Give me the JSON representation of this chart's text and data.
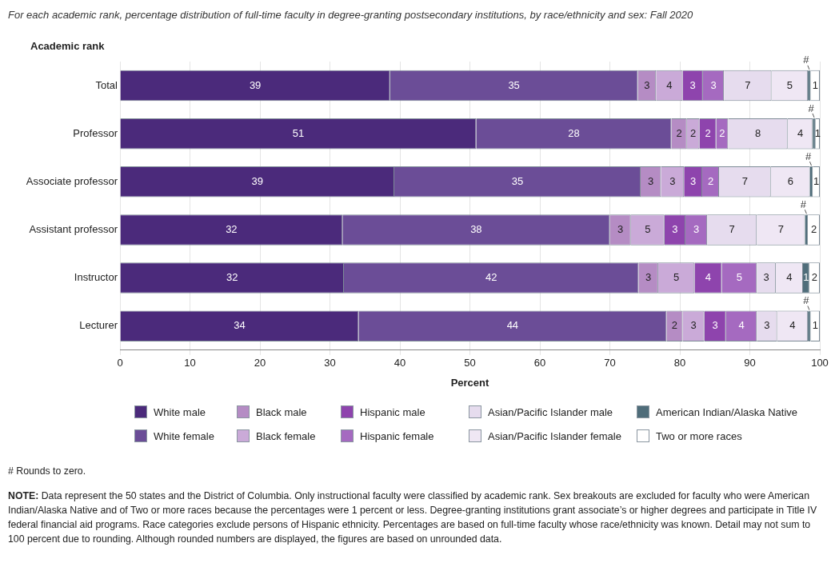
{
  "chart_data": {
    "type": "bar",
    "orientation": "horizontal",
    "stacked": true,
    "title": "For each academic rank, percentage distribution of full-time faculty in degree-granting postsecondary institutions, by race/ethnicity and sex: Fall 2020",
    "ylabel": "Academic rank",
    "xlabel": "Percent",
    "categories": [
      "Total",
      "Professor",
      "Associate professor",
      "Assistant professor",
      "Instructor",
      "Lecturer"
    ],
    "xlim": [
      0,
      100
    ],
    "xticks": [
      0,
      10,
      20,
      30,
      40,
      50,
      60,
      70,
      80,
      90,
      100
    ],
    "grid": "x",
    "legend": "bottom",
    "series": [
      {
        "name": "White male",
        "color": "#4b2a7b",
        "values": [
          38.6,
          50.9,
          39.2,
          31.8,
          32.0,
          34.1
        ],
        "value_labels": [
          "39",
          "51",
          "39",
          "32",
          "32",
          "34"
        ]
      },
      {
        "name": "White female",
        "color": "#6b4d97",
        "values": [
          35.4,
          27.9,
          35.2,
          38.2,
          42.1,
          44.0
        ],
        "value_labels": [
          "35",
          "28",
          "35",
          "38",
          "42",
          "44"
        ]
      },
      {
        "name": "Black male",
        "color": "#b58cc4",
        "values": [
          2.6,
          2.2,
          2.9,
          3.0,
          2.8,
          2.3
        ],
        "value_labels": [
          "3",
          "2",
          "3",
          "3",
          "3",
          "2"
        ]
      },
      {
        "name": "Black female",
        "color": "#caaad8",
        "values": [
          3.8,
          1.8,
          3.3,
          4.8,
          5.2,
          3.1
        ],
        "value_labels": [
          "4",
          "2",
          "3",
          "5",
          "5",
          "3"
        ]
      },
      {
        "name": "Hispanic male",
        "color": "#8e44ad",
        "values": [
          2.9,
          2.4,
          2.6,
          3.0,
          3.9,
          3.1
        ],
        "value_labels": [
          "3",
          "2",
          "3",
          "3",
          "4",
          "3"
        ]
      },
      {
        "name": "Hispanic female",
        "color": "#a56ac0",
        "values": [
          3.0,
          1.7,
          2.4,
          3.1,
          5.0,
          4.4
        ],
        "value_labels": [
          "3",
          "2",
          "2",
          "3",
          "5",
          "4"
        ]
      },
      {
        "name": "Asian/Pacific Islander male",
        "color": "#e6dcee",
        "values": [
          6.8,
          8.5,
          7.4,
          7.1,
          2.7,
          2.9
        ],
        "value_labels": [
          "7",
          "8",
          "7",
          "7",
          "3",
          "3"
        ]
      },
      {
        "name": "Asian/Pacific Islander female",
        "color": "#efe7f4",
        "values": [
          5.2,
          3.6,
          5.6,
          6.9,
          3.9,
          4.4
        ],
        "value_labels": [
          "5",
          "4",
          "6",
          "7",
          "4",
          "4"
        ]
      },
      {
        "name": "American Indian/Alaska Native",
        "color": "#4f6d7a",
        "values": [
          0.4,
          0.4,
          0.4,
          0.4,
          0.9,
          0.4
        ],
        "value_labels": [
          "#",
          "#",
          "#",
          "#",
          "1",
          "#"
        ]
      },
      {
        "name": "Two or more races",
        "color": "#ffffff",
        "values": [
          1.3,
          0.6,
          1.0,
          1.7,
          1.5,
          1.3
        ],
        "value_labels": [
          "1",
          "1",
          "1",
          "2",
          "2",
          "1"
        ]
      }
    ],
    "annotations": [
      "# Rounds to zero.",
      "NOTE: Data represent the 50 states and the District of Columbia. Only instructional faculty were classified by academic rank. Sex breakouts are excluded for faculty who were American Indian/Alaska Native and of Two or more races because the percentages were 1 percent or less. Degree-granting institutions grant associate’s or higher degrees and participate in Title IV federal financial aid programs. Race categories exclude persons of Hispanic ethnicity. Percentages are based on full-time faculty whose race/ethnicity was known. Detail may not sum to 100 percent due to rounding. Although rounded numbers are displayed, the figures are based on unrounded data."
    ]
  }
}
